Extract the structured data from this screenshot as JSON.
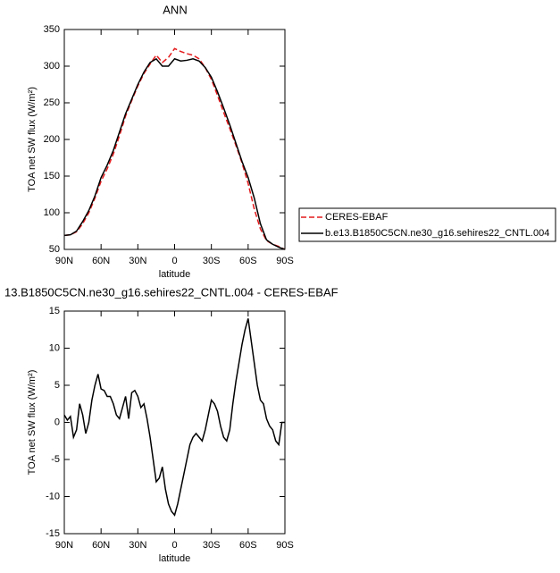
{
  "chart_data": [
    {
      "type": "line",
      "title": "ANN",
      "xlabel": "latitude",
      "ylabel": "TOA net SW flux (W/m²)",
      "xlim": [
        90,
        -90
      ],
      "xticks": [
        {
          "value": 90,
          "label": "90N"
        },
        {
          "value": 60,
          "label": "60N"
        },
        {
          "value": 30,
          "label": "30N"
        },
        0,
        {
          "value": -30,
          "label": "30S"
        },
        {
          "value": -60,
          "label": "60S"
        },
        {
          "value": -90,
          "label": "90S"
        }
      ],
      "ylim": [
        50,
        350
      ],
      "yticks": [
        50,
        100,
        150,
        200,
        250,
        300,
        350
      ],
      "x": [
        90,
        85,
        80,
        75,
        70,
        65,
        60,
        55,
        50,
        45,
        40,
        35,
        30,
        25,
        20,
        15,
        10,
        5,
        0,
        -5,
        -10,
        -15,
        -20,
        -25,
        -30,
        -35,
        -40,
        -45,
        -50,
        -55,
        -60,
        -65,
        -70,
        -75,
        -80,
        -85,
        -90
      ],
      "series": [
        {
          "name": "CERES-EBAF",
          "color": "#e41a1c",
          "dash": true,
          "values": [
            69,
            70,
            74,
            85,
            100,
            120,
            143,
            160,
            180,
            205,
            232,
            253,
            273,
            290,
            303,
            315,
            305,
            312,
            324,
            320,
            317,
            315,
            310,
            298,
            282,
            260,
            237,
            215,
            192,
            168,
            140,
            105,
            78,
            62,
            57,
            54,
            50
          ]
        },
        {
          "name": "b.e13.B1850C5CN.ne30_g16.sehires22_CNTL.004",
          "color": "#000000",
          "dash": false,
          "values": [
            69,
            70,
            75,
            88,
            103,
            123,
            148,
            165,
            185,
            210,
            235,
            255,
            275,
            292,
            305,
            310,
            300,
            300,
            310,
            307,
            308,
            310,
            307,
            298,
            285,
            265,
            243,
            220,
            195,
            170,
            148,
            120,
            85,
            63,
            57,
            53,
            50
          ]
        }
      ]
    },
    {
      "type": "line",
      "title": "13.B1850C5CN.ne30_g16.sehires22_CNTL.004 - CERES-EBAF",
      "xlabel": "latitude",
      "ylabel": "TOA net SW flux (W/m²)",
      "xlim": [
        90,
        -90
      ],
      "xticks": [
        {
          "value": 90,
          "label": "90N"
        },
        {
          "value": 60,
          "label": "60N"
        },
        {
          "value": 30,
          "label": "30N"
        },
        0,
        {
          "value": -30,
          "label": "30S"
        },
        {
          "value": -60,
          "label": "60S"
        },
        {
          "value": -90,
          "label": "90S"
        }
      ],
      "ylim": [
        -15,
        15
      ],
      "yticks": [
        -15,
        -10,
        -5,
        0,
        5,
        10,
        15
      ],
      "x": [
        90,
        87.5,
        85,
        82.5,
        80,
        77.5,
        75,
        72.5,
        70,
        67.5,
        65,
        62.5,
        60,
        57.5,
        55,
        52.5,
        50,
        47.5,
        45,
        42.5,
        40,
        37.5,
        35,
        32.5,
        30,
        27.5,
        25,
        22.5,
        20,
        17.5,
        15,
        12.5,
        10,
        7.5,
        5,
        2.5,
        0,
        -2.5,
        -5,
        -7.5,
        -10,
        -12.5,
        -15,
        -17.5,
        -20,
        -22.5,
        -25,
        -27.5,
        -30,
        -32.5,
        -35,
        -37.5,
        -40,
        -42.5,
        -45,
        -47.5,
        -50,
        -52.5,
        -55,
        -57.5,
        -60,
        -62.5,
        -65,
        -67.5,
        -70,
        -72.5,
        -75,
        -77.5,
        -80,
        -82.5,
        -85,
        -87.5,
        -90
      ],
      "series": [
        {
          "color": "#000000",
          "dash": false,
          "values": [
            1,
            0.3,
            0.8,
            -2,
            -1,
            2.5,
            1,
            -1.5,
            0,
            3,
            5,
            6.5,
            4.5,
            4.3,
            3.5,
            3.5,
            2.5,
            1,
            0.5,
            2,
            3.5,
            0.5,
            4,
            4.3,
            3.5,
            2,
            2.5,
            0.5,
            -2,
            -5,
            -8,
            -7.5,
            -6,
            -9,
            -11,
            -12,
            -12.5,
            -11,
            -9,
            -7,
            -5,
            -3,
            -2,
            -1.5,
            -2,
            -2.5,
            -1,
            1,
            3,
            2.5,
            1.5,
            -0.5,
            -2,
            -2.5,
            -1,
            2.5,
            5.5,
            8,
            10.5,
            12.5,
            14,
            11,
            8,
            5,
            3,
            2.5,
            0.5,
            -0.5,
            -1,
            -2.5,
            -3,
            0,
            0
          ]
        }
      ]
    }
  ]
}
